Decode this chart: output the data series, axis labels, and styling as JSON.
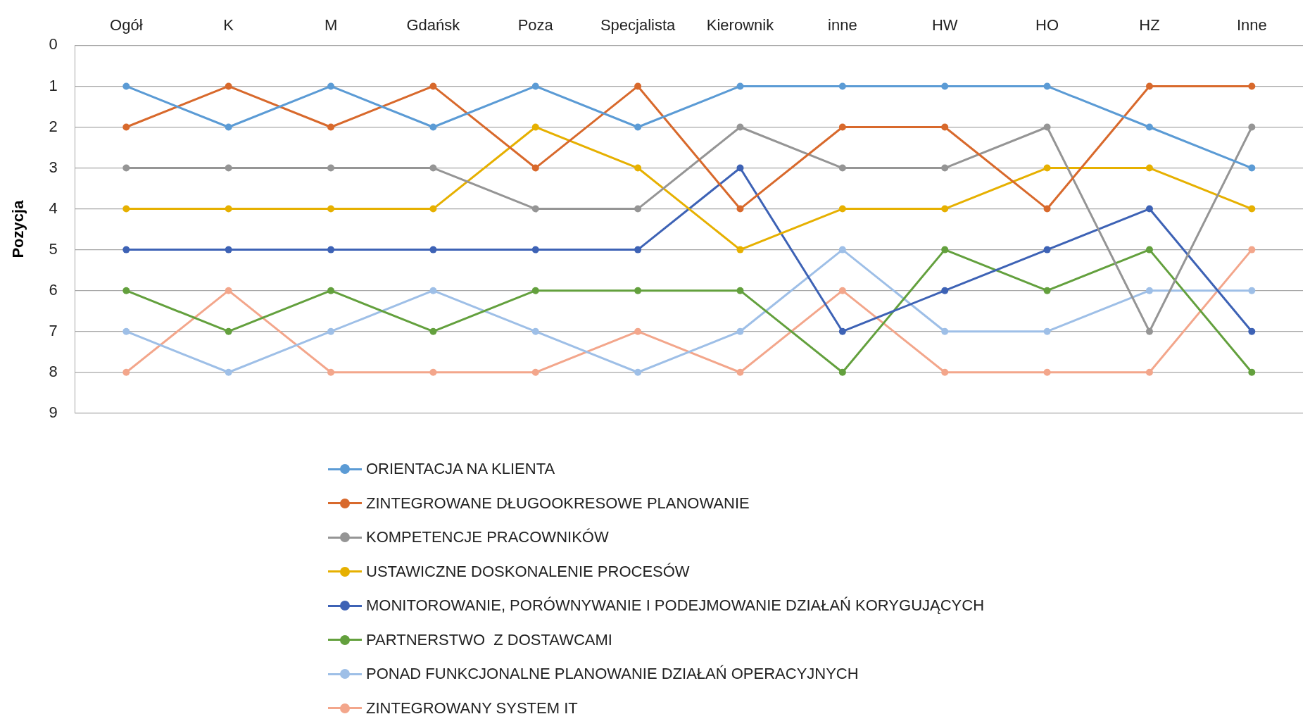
{
  "chart_data": {
    "type": "line",
    "ylabel": "Pozycja",
    "categories": [
      "Ogół",
      "K",
      "M",
      "Gdańsk",
      "Poza",
      "Specjalista",
      "Kierownik",
      "inne",
      "HW",
      "HO",
      "HZ",
      "Inne"
    ],
    "ylim": [
      9,
      0
    ],
    "yticks": [
      0,
      1,
      2,
      3,
      4,
      5,
      6,
      7,
      8,
      9
    ],
    "grid": "y",
    "legend": "bottom",
    "marker": "circle",
    "line_style": "solid",
    "series": [
      {
        "name": "ORIENTACJA NA KLIENTA",
        "color": "#5b9bd5",
        "values": [
          1,
          2,
          1,
          2,
          1,
          2,
          1,
          1,
          1,
          1,
          2,
          3
        ]
      },
      {
        "name": "ZINTEGROWANE DŁUGOOKRESOWE PLANOWANIE",
        "color": "#d8692c",
        "values": [
          2,
          1,
          2,
          1,
          3,
          1,
          4,
          2,
          2,
          4,
          1,
          1
        ]
      },
      {
        "name": "KOMPETENCJE PRACOWNIKÓW",
        "color": "#959595",
        "values": [
          3,
          3,
          3,
          3,
          4,
          4,
          2,
          3,
          3,
          2,
          7,
          2
        ]
      },
      {
        "name": "USTAWICZNE DOSKONALENIE PROCESÓW",
        "color": "#e6b000",
        "values": [
          4,
          4,
          4,
          4,
          2,
          3,
          5,
          4,
          4,
          3,
          3,
          4
        ]
      },
      {
        "name": "MONITOROWANIE, PORÓWNYWANIE I PODEJMOWANIE DZIAŁAŃ KORYGUJĄCYCH",
        "color": "#3d62b5",
        "values": [
          5,
          5,
          5,
          5,
          5,
          5,
          3,
          7,
          6,
          5,
          4,
          7
        ]
      },
      {
        "name": "PARTNERSTWO  Z DOSTAWCAMI",
        "color": "#63a03d",
        "values": [
          6,
          7,
          6,
          7,
          6,
          6,
          6,
          8,
          5,
          6,
          5,
          8
        ]
      },
      {
        "name": "PONAD FUNKCJONALNE PLANOWANIE DZIAŁAŃ OPERACYJNYCH",
        "color": "#9ebfe7",
        "values": [
          7,
          8,
          7,
          6,
          7,
          8,
          7,
          5,
          7,
          7,
          6,
          6
        ]
      },
      {
        "name": "ZINTEGROWANY SYSTEM IT",
        "color": "#f3a68b",
        "values": [
          8,
          6,
          8,
          8,
          8,
          7,
          8,
          6,
          8,
          8,
          8,
          5
        ]
      }
    ]
  }
}
